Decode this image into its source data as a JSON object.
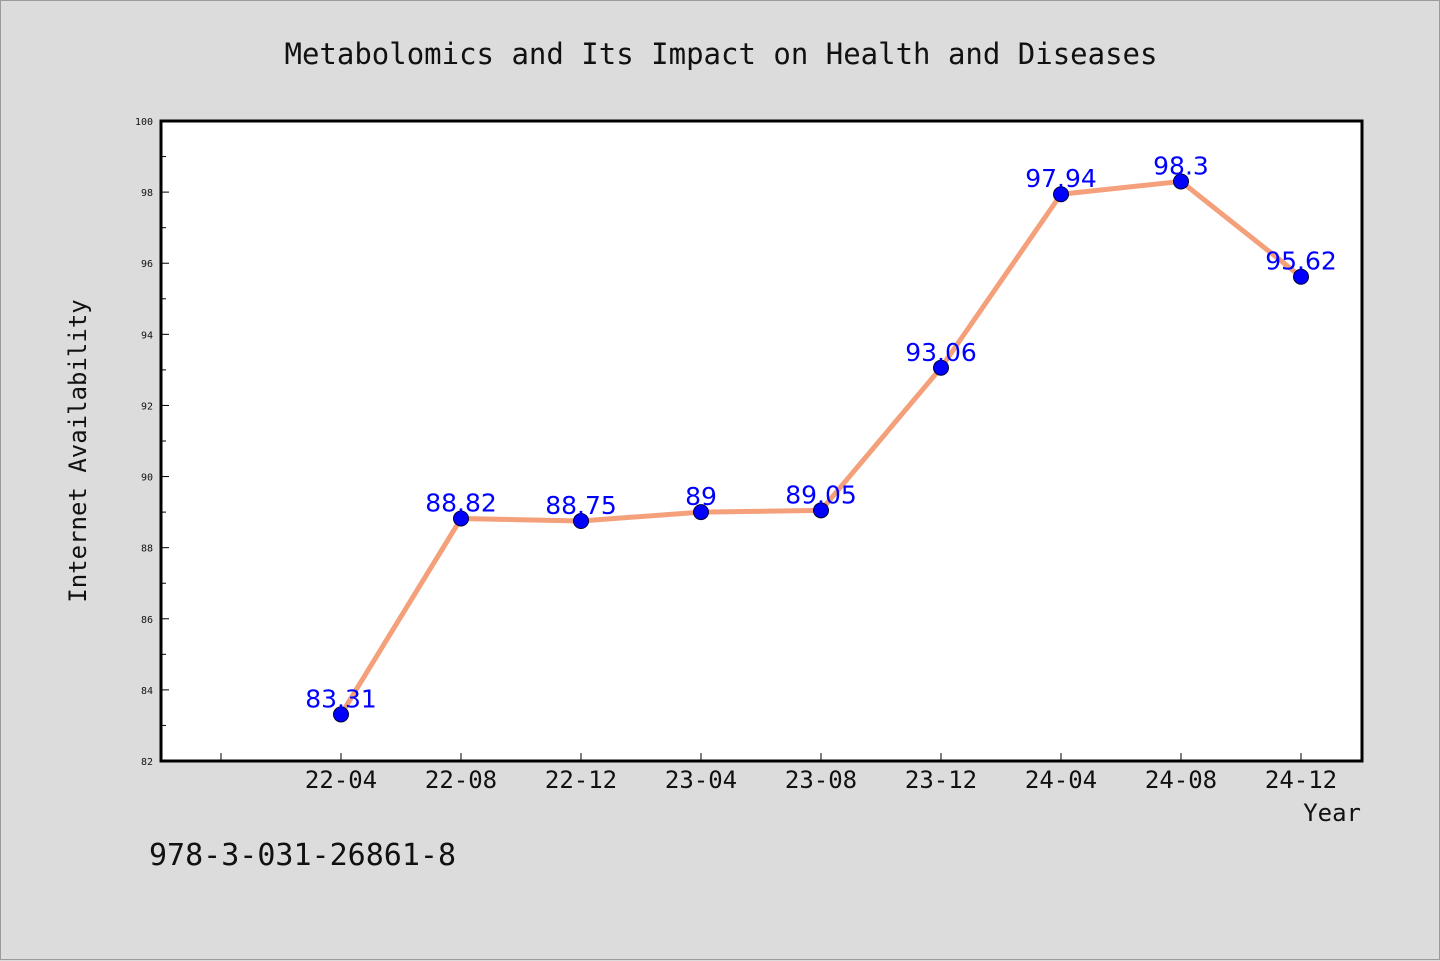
{
  "chart_data": {
    "type": "line",
    "title": "Metabolomics and Its Impact on Health and Diseases",
    "xlabel": "Year",
    "ylabel": "Internet Availability",
    "categories": [
      "22-04",
      "22-08",
      "22-12",
      "23-04",
      "23-08",
      "23-12",
      "24-04",
      "24-08",
      "24-12"
    ],
    "series": [
      {
        "values": [
          83.31,
          88.82,
          88.75,
          89,
          89.05,
          93.06,
          97.94,
          98.3,
          95.62
        ]
      }
    ],
    "data_labels": [
      "83.31",
      "88.82",
      "88.75",
      "89",
      "89.05",
      "93.06",
      "97.94",
      "98.3",
      "95.62"
    ],
    "ylim": [
      82,
      100
    ],
    "yticks": [
      82,
      84,
      86,
      88,
      90,
      92,
      94,
      96,
      98,
      100
    ],
    "ytick_labels": [
      "82",
      "84",
      "86",
      "88",
      "90",
      "92",
      "94",
      "96",
      "98",
      "100"
    ],
    "grid": false,
    "legend": "none",
    "colors": {
      "line": "#f4a07a",
      "marker": "#0000ff",
      "label": "#0000ff"
    }
  },
  "footer": {
    "isbn": "978-3-031-26861-8"
  }
}
